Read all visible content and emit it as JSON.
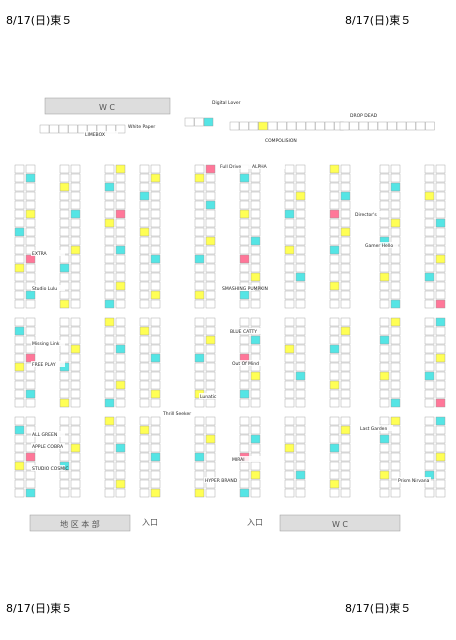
{
  "header": {
    "top_left": "8/17(日)東５",
    "top_right": "8/17(日)東５",
    "bottom_left": "8/17(日)東５",
    "bottom_right": "8/17(日)東５"
  },
  "facilities": {
    "wc_top": "W C",
    "wc_bottom": "W C",
    "headquarters": "地 区 本 部",
    "entrance_1": "入口",
    "entrance_2": "入口"
  },
  "labels": [
    "White Paper",
    "LIMEBOX",
    "Digital Lover",
    "DROP DEAD",
    "COMPOLISION",
    "Full Drive",
    "ALPHA",
    "Director's",
    "Gamer Hello",
    "EXTRA",
    "Studio Lulu",
    "SMASHING PUMPKIN",
    "Missing Link",
    "FREE PLAY",
    "BLUE CATTY",
    "Out Of Mind",
    "Thrill Seeker",
    "ALL GREEN",
    "APPLE COBRA",
    "Last Garden",
    "HYPER BRAND",
    "MIRAI",
    "Prism Nirvana",
    "STUDIO COSMIC",
    "Lunatic"
  ]
}
